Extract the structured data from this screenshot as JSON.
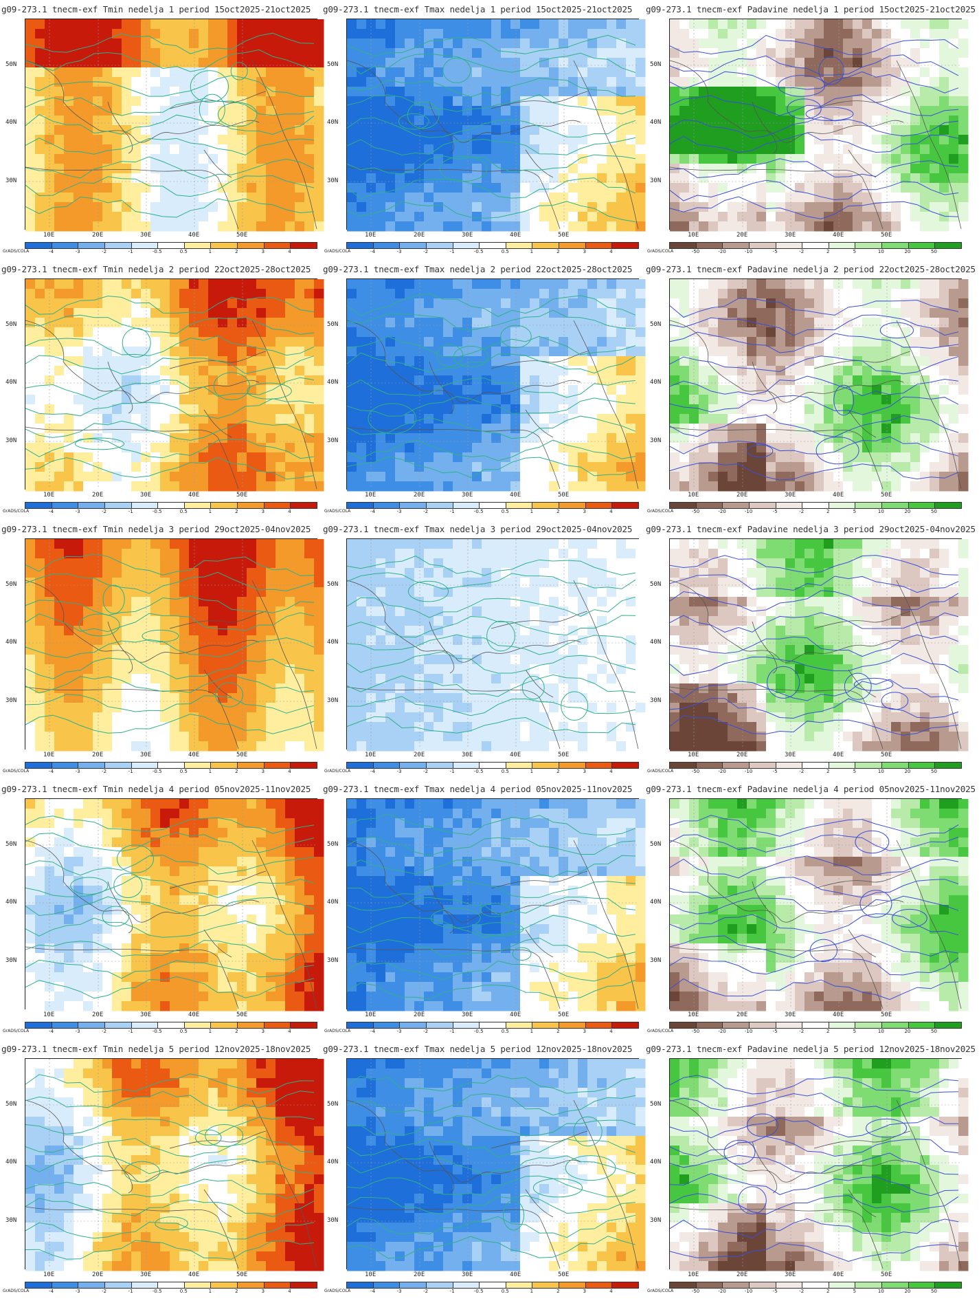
{
  "lat_labels": [
    "50N",
    "40N",
    "30N"
  ],
  "lon_labels": [
    "10E",
    "20E",
    "30E",
    "40E",
    "50E"
  ],
  "colorbar_brand": "GrADS/COLA",
  "temp_ticks": [
    "-4",
    "-3",
    "-2",
    "-1",
    "-0.5",
    "0.5",
    "1",
    "2",
    "3",
    "4"
  ],
  "precip_ticks": [
    "-50",
    "-20",
    "-10",
    "-5",
    "-2",
    "2",
    "5",
    "10",
    "20",
    "50"
  ],
  "temp_colors": [
    "#1e6fd9",
    "#3f8ee6",
    "#74b0ee",
    "#a9d0f5",
    "#d9ecfb",
    "#ffffff",
    "#ffee9e",
    "#f8c44a",
    "#f39a2a",
    "#ea5a12",
    "#c81a0a"
  ],
  "precip_colors": [
    "#6b4638",
    "#8f6a5c",
    "#b89a8e",
    "#dcc8c0",
    "#f3e9e4",
    "#ffffff",
    "#e3f7dc",
    "#b8ebaa",
    "#7fdc72",
    "#47c640",
    "#1f9e1f"
  ],
  "rows": [
    {
      "tmin": "g09-273.1 tnecm-exf Tmin nedelja 1 period 15oct2025-21oct2025",
      "tmax": "g09-273.1 tnecm-exf Tmax nedelja 1 period 15oct2025-21oct2025",
      "prec": "g09-273.1 tnecm-exf Padavine nedelja 1 period 15oct2025-21oct2025"
    },
    {
      "tmin": "g09-273.1 tnecm-exf Tmin nedelja 2 period 22oct2025-28oct2025",
      "tmax": "g09-273.1 tnecm-exf Tmax nedelja 2 period 22oct2025-28oct2025",
      "prec": "g09-273.1 tnecm-exf Padavine nedelja 2 period 22oct2025-28oct2025"
    },
    {
      "tmin": "g09-273.1 tnecm-exf Tmin nedelja 3 period 29oct2025-04nov2025",
      "tmax": "g09-273.1 tnecm-exf Tmax nedelja 3 period 29oct2025-04nov2025",
      "prec": "g09-273.1 tnecm-exf Padavine nedelja 3 period 29oct2025-04nov2025"
    },
    {
      "tmin": "g09-273.1 tnecm-exf Tmin nedelja 4 period 05nov2025-11nov2025",
      "tmax": "g09-273.1 tnecm-exf Tmax nedelja 4 period 05nov2025-11nov2025",
      "prec": "g09-273.1 tnecm-exf Padavine nedelja 4 period 05nov2025-11nov2025"
    },
    {
      "tmin": "g09-273.1 tnecm-exf Tmin nedelja 5 period 12nov2025-18nov2025",
      "tmax": "g09-273.1 tnecm-exf Tmax nedelja 5 period 12nov2025-18nov2025",
      "prec": "g09-273.1 tnecm-exf Padavine nedelja 5 period 12nov2025-18nov2025"
    }
  ]
}
